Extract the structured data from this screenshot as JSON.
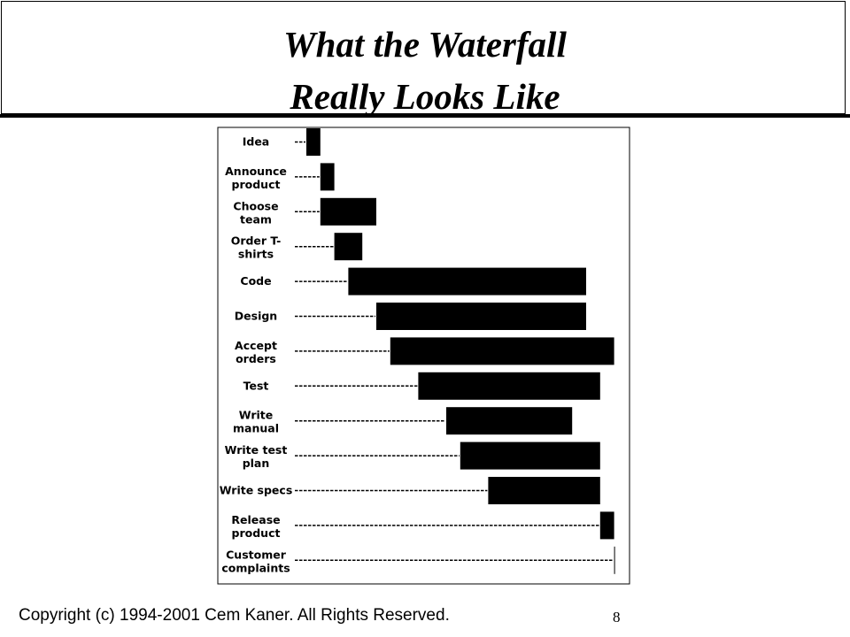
{
  "title": {
    "line1": "What the Waterfall",
    "line2": "Really Looks Like"
  },
  "footer": {
    "copyright": "Copyright (c) 1994-2001 Cem Kaner. All Rights Reserved.",
    "page_number": "8"
  },
  "chart_data": {
    "type": "bar",
    "orientation": "horizontal",
    "title": "",
    "xlabel": "",
    "ylabel": "",
    "categories": [
      [
        "Idea"
      ],
      [
        "Announce",
        "product"
      ],
      [
        "Choose",
        "team"
      ],
      [
        "Order T-",
        "shirts"
      ],
      [
        "Code"
      ],
      [
        "Design"
      ],
      [
        "Accept",
        "orders"
      ],
      [
        "Test"
      ],
      [
        "Write",
        "manual"
      ],
      [
        "Write test",
        "plan"
      ],
      [
        "Write specs"
      ],
      [
        "Release",
        "product"
      ],
      [
        "Customer",
        "complaints"
      ]
    ],
    "start": [
      0,
      1,
      1,
      2,
      3,
      5,
      6,
      8,
      10,
      11,
      13,
      21,
      22
    ],
    "end": [
      1,
      2,
      5,
      4,
      20,
      20,
      22,
      21,
      19,
      21,
      21,
      22,
      22
    ],
    "xlim": [
      0,
      22
    ],
    "bar_color": "#000000"
  }
}
